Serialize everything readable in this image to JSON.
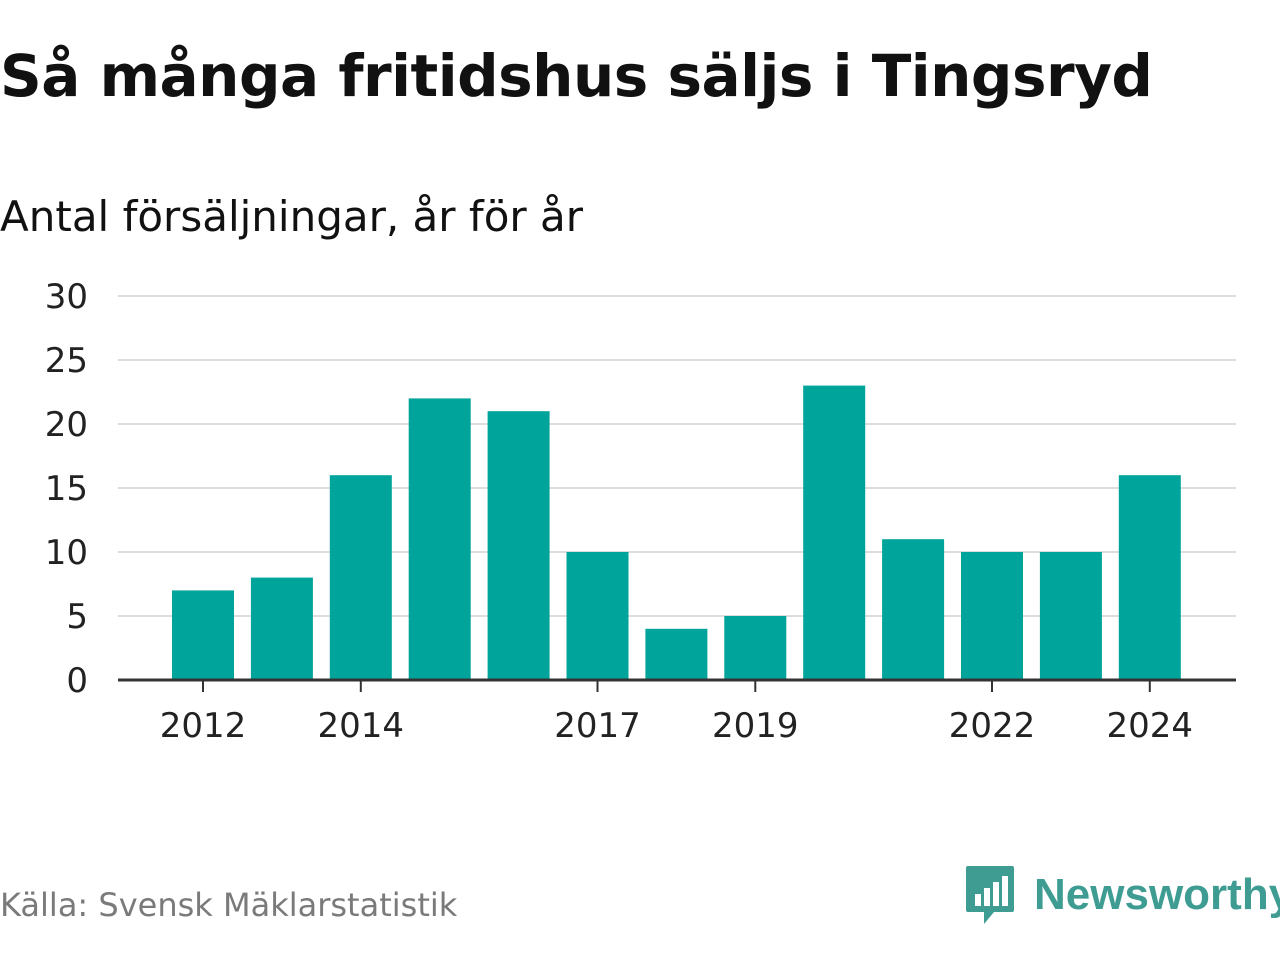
{
  "title": "Så många fritidshus säljs i Tingsryd",
  "subtitle": "Antal försäljningar, år för år",
  "source": "Källa: Svensk Mäklarstatistik",
  "brand": {
    "name": "Newsworthy",
    "icon": "newsworthy-logo-icon",
    "color": "#3f9c93"
  },
  "colors": {
    "bar": "#00a49a",
    "grid": "#dddddd",
    "axis": "#333333",
    "text": "#222222"
  },
  "chart_data": {
    "type": "bar",
    "categories": [
      "2012",
      "2013",
      "2014",
      "2015",
      "2016",
      "2017",
      "2018",
      "2019",
      "2020",
      "2021",
      "2022",
      "2023",
      "2024"
    ],
    "values": [
      7,
      8,
      16,
      22,
      21,
      10,
      4,
      5,
      23,
      11,
      10,
      10,
      16
    ],
    "x_tick_labels": [
      "2012",
      "2014",
      "2017",
      "2019",
      "2022",
      "2024"
    ],
    "y_ticks": [
      0,
      5,
      10,
      15,
      20,
      25,
      30
    ],
    "ylim": [
      0,
      30
    ],
    "grid": true,
    "legend": "none"
  }
}
